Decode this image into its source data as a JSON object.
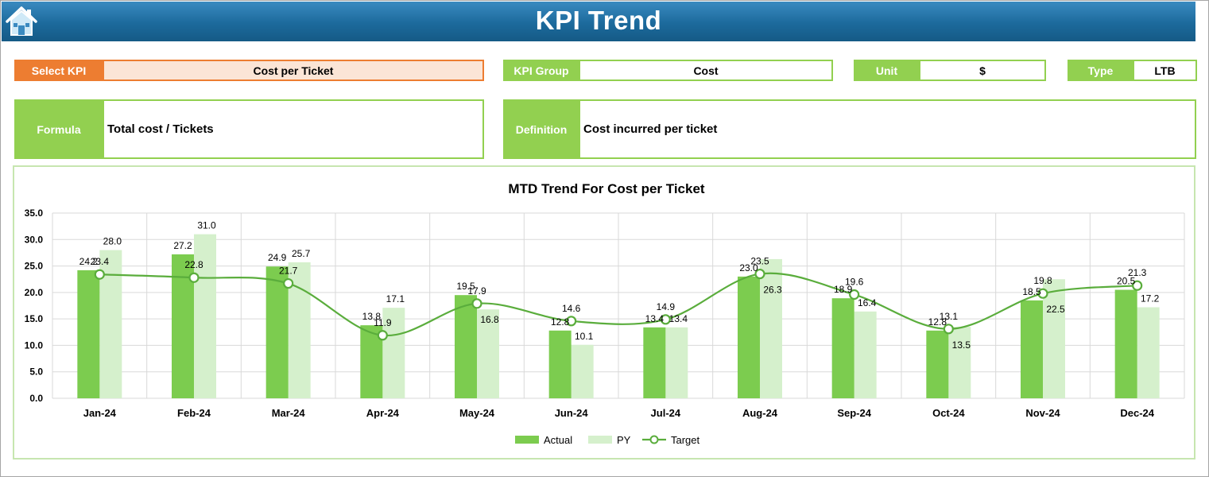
{
  "header": {
    "title": "KPI Trend",
    "home_icon": "home-icon"
  },
  "fields": {
    "select_kpi_label": "Select KPI",
    "select_kpi_value": "Cost per Ticket",
    "kpi_group_label": "KPI Group",
    "kpi_group_value": "Cost",
    "unit_label": "Unit",
    "unit_value": "$",
    "type_label": "Type",
    "type_value": "LTB",
    "formula_label": "Formula",
    "formula_value": "Total cost / Tickets",
    "definition_label": "Definition",
    "definition_value": "Cost incurred per ticket"
  },
  "colors": {
    "header": "#1c6a9c",
    "select_label": "#ed7d31",
    "select_value_bg": "#fbe5d6",
    "green_label": "#92d050",
    "actual": "#7ccc4f",
    "py": "#d5f0cc",
    "target": "#5aad3c"
  },
  "chart_data": {
    "type": "bar",
    "title": "MTD Trend For Cost per Ticket",
    "categories": [
      "Jan-24",
      "Feb-24",
      "Mar-24",
      "Apr-24",
      "May-24",
      "Jun-24",
      "Jul-24",
      "Aug-24",
      "Sep-24",
      "Oct-24",
      "Nov-24",
      "Dec-24"
    ],
    "series": [
      {
        "name": "Actual",
        "type": "bar",
        "values": [
          24.2,
          27.2,
          24.9,
          13.8,
          19.5,
          12.8,
          13.4,
          23.0,
          18.9,
          12.8,
          18.5,
          20.5
        ]
      },
      {
        "name": "PY",
        "type": "bar",
        "values": [
          28.0,
          31.0,
          25.7,
          17.1,
          16.8,
          10.1,
          13.4,
          26.3,
          16.4,
          13.5,
          22.5,
          17.2
        ]
      },
      {
        "name": "Target",
        "type": "line",
        "values": [
          23.4,
          22.8,
          21.7,
          11.9,
          17.9,
          14.6,
          14.9,
          23.5,
          19.6,
          13.1,
          19.8,
          21.3
        ]
      }
    ],
    "ylim": [
      0,
      35
    ],
    "yticks": [
      "0.0",
      "5.0",
      "10.0",
      "15.0",
      "20.0",
      "25.0",
      "30.0",
      "35.0"
    ],
    "grid": true,
    "legend_position": "bottom"
  }
}
